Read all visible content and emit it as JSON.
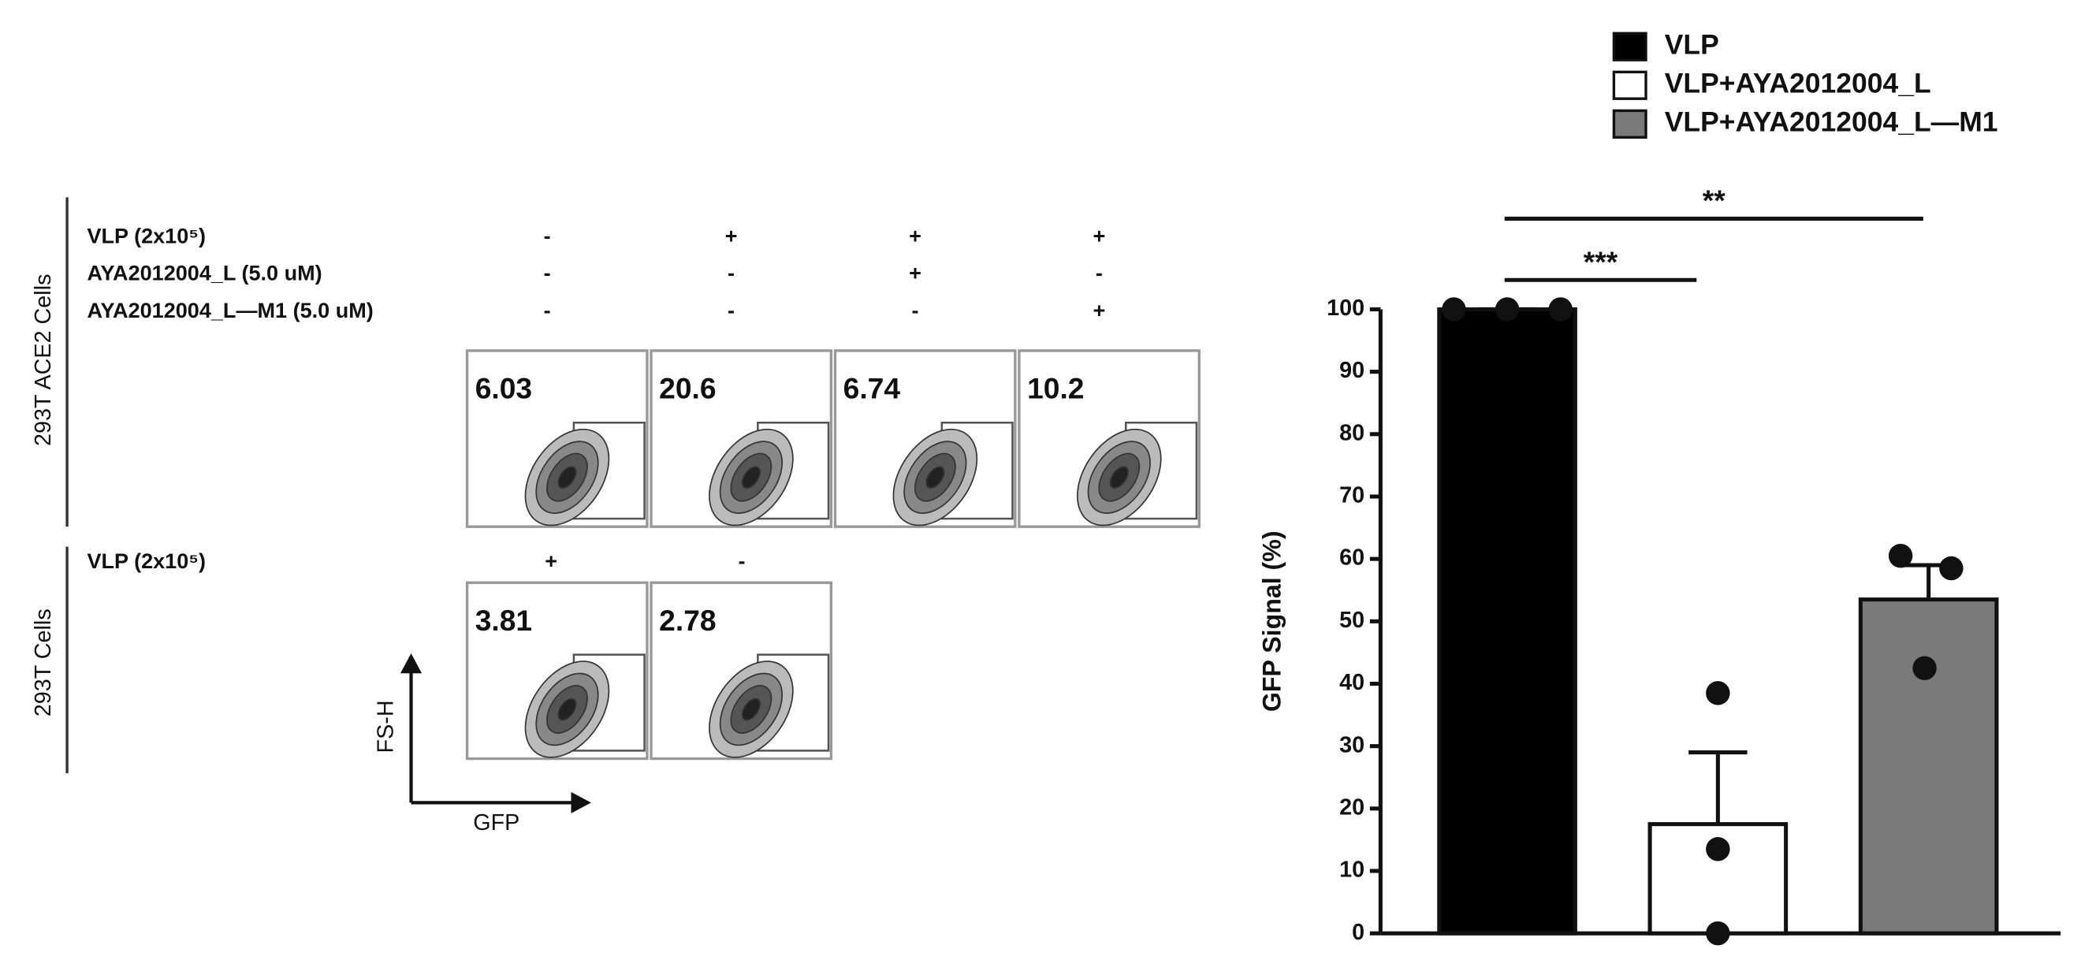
{
  "chart_data": {
    "type": "bar",
    "ylabel": "GFP Signal (%)",
    "categories": [
      null
    ],
    "series": [
      {
        "name": "VLP",
        "color": "#000000",
        "values": [
          100
        ],
        "errors": [
          0
        ],
        "points": [
          [
            100,
            100,
            100
          ]
        ]
      },
      {
        "name": "VLP+AYA2012004_L",
        "color": "#ffffff",
        "values": [
          17.5
        ],
        "errors": [
          11.5
        ],
        "points": [
          [
            38.5,
            13.5,
            0
          ]
        ]
      },
      {
        "name": "VLP+AYA2012004_L—M1",
        "color": "#7a7a7a",
        "values": [
          53.5
        ],
        "errors": [
          5.5
        ],
        "points": [
          [
            60.5,
            58.5,
            42.5
          ]
        ]
      }
    ],
    "annotations": [
      "***",
      "**"
    ],
    "ylim": [
      0,
      100
    ],
    "yticks": [
      0,
      10,
      20,
      30,
      40,
      50,
      60,
      70,
      80,
      90,
      100
    ],
    "grid": false
  },
  "flow": {
    "ace2": {
      "cell_label": "293T ACE2 Cells",
      "conditions": [
        {
          "label": "VLP  (2x10⁵)",
          "signs": [
            "-",
            "+",
            "+",
            "+"
          ]
        },
        {
          "label": "AYA2012004_L (5.0 uM)",
          "signs": [
            "-",
            "-",
            "+",
            "-"
          ]
        },
        {
          "label": "AYA2012004_L—M1 (5.0 uM)",
          "signs": [
            "-",
            "-",
            "-",
            "+"
          ]
        }
      ],
      "gates": [
        6.03,
        20.6,
        6.74,
        10.2
      ]
    },
    "t293": {
      "cell_label": "293T Cells",
      "conditions": [
        {
          "label": "VLP  (2x10⁵)",
          "signs": [
            "+",
            "-"
          ]
        }
      ],
      "gates": [
        3.81,
        2.78
      ]
    },
    "axes": {
      "y": "FS-H",
      "x": "GFP"
    }
  }
}
